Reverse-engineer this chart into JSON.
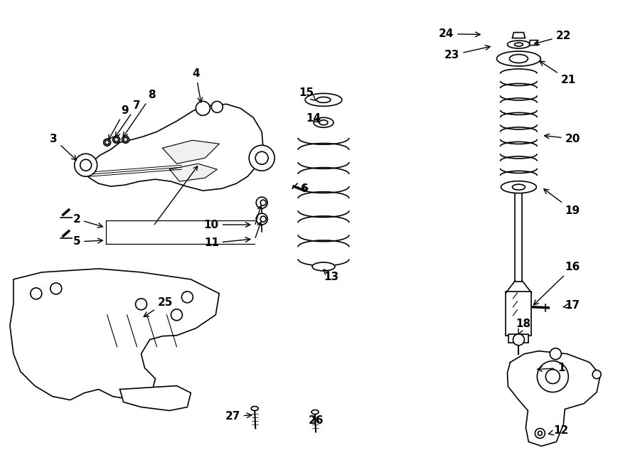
{
  "bg_color": "#ffffff",
  "line_color": "#000000",
  "lw": 1.2,
  "label_fontsize": 11,
  "annotations": [
    [
      "3",
      75,
      195,
      110,
      228
    ],
    [
      "9",
      175,
      155,
      150,
      200
    ],
    [
      "7",
      192,
      148,
      159,
      196
    ],
    [
      "8",
      213,
      133,
      170,
      196
    ],
    [
      "4",
      275,
      103,
      283,
      148
    ],
    [
      "2",
      107,
      308,
      148,
      320
    ],
    [
      "5",
      107,
      340,
      148,
      338
    ],
    [
      "10",
      297,
      316,
      356,
      316
    ],
    [
      "11",
      297,
      342,
      356,
      336
    ],
    [
      "6",
      428,
      265,
      425,
      268
    ],
    [
      "15",
      431,
      130,
      445,
      142
    ],
    [
      "14",
      441,
      166,
      453,
      174
    ],
    [
      "13",
      466,
      390,
      454,
      378
    ],
    [
      "16",
      806,
      376,
      748,
      432
    ],
    [
      "17",
      806,
      430,
      792,
      432
    ],
    [
      "18",
      736,
      456,
      728,
      474
    ],
    [
      "19",
      806,
      296,
      762,
      263
    ],
    [
      "20",
      806,
      195,
      762,
      190
    ],
    [
      "21",
      800,
      112,
      756,
      83
    ],
    [
      "22",
      793,
      50,
      748,
      62
    ],
    [
      "23",
      636,
      77,
      694,
      64
    ],
    [
      "24",
      628,
      47,
      680,
      48
    ],
    [
      "1",
      790,
      518,
      752,
      520
    ],
    [
      "12",
      790,
      606,
      768,
      612
    ],
    [
      "25",
      232,
      426,
      198,
      448
    ],
    [
      "26",
      444,
      592,
      440,
      586
    ],
    [
      "27",
      327,
      586,
      358,
      584
    ]
  ]
}
